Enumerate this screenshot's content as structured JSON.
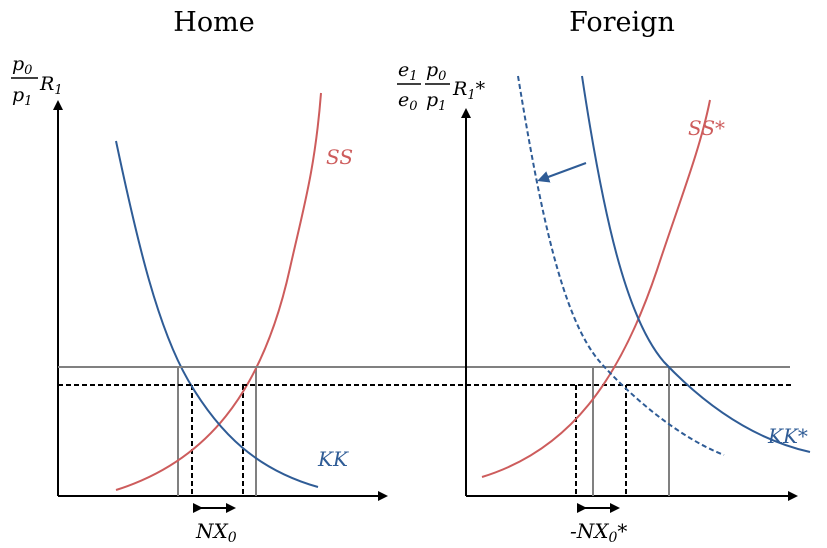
{
  "panels": {
    "home": {
      "title": "Home",
      "y_label": {
        "p0": "p",
        "p0_sub": "0",
        "p1": "p",
        "p1_sub": "1",
        "R": "R",
        "R_sub": "1"
      },
      "ss_label": "SS",
      "kk_label": "KK",
      "nx_label": {
        "text": "NX",
        "sub": "0"
      }
    },
    "foreign": {
      "title": "Foreign",
      "y_label": {
        "e1": "e",
        "e1_sub": "1",
        "e0": "e",
        "e0_sub": "0",
        "p0": "p",
        "p0_sub": "0",
        "p1": "p",
        "p1_sub": "1",
        "R": "R",
        "R_sub": "1",
        "star": "*"
      },
      "ss_label": "SS*",
      "kk_label": "KK*",
      "nx_label": {
        "prefix": "-NX",
        "sub": "0",
        "star": "*"
      }
    }
  },
  "colors": {
    "kk": "#2f5c96",
    "ss": "#cd5c5c",
    "rate_line": "#808080",
    "axis": "#000000"
  }
}
